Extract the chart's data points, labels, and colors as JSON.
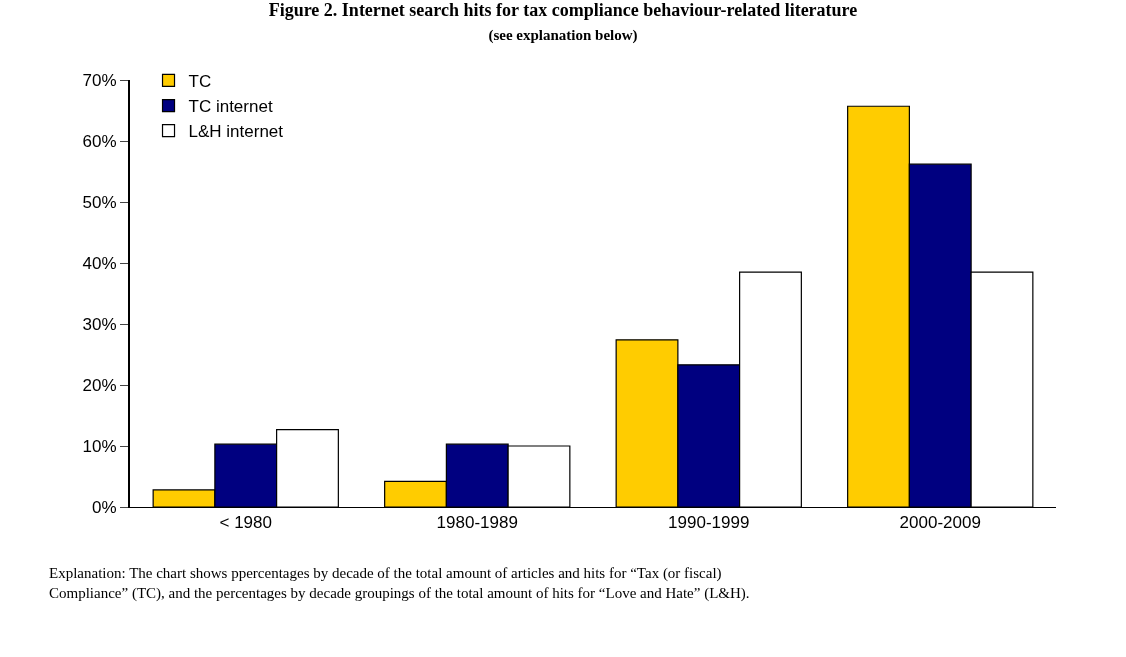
{
  "chart_data": {
    "type": "bar",
    "title": "Figure 2. Internet search hits for tax compliance behaviour-related literature",
    "subtitle": "(see explanation below)",
    "categories": [
      "< 1980",
      "1980-1989",
      "1990-1999",
      "2000-2009"
    ],
    "series": [
      {
        "name": "TC",
        "color": "#ffcc00",
        "values": [
          2.8,
          4.2,
          27.4,
          65.7
        ]
      },
      {
        "name": "TC internet",
        "color": "#000080",
        "values": [
          10.3,
          10.3,
          23.3,
          56.2
        ]
      },
      {
        "name": "L&H internet",
        "color": "#ffffff",
        "values": [
          12.7,
          10.0,
          38.5,
          38.5
        ]
      }
    ],
    "ylim": [
      0,
      70
    ],
    "yticks": [
      {
        "value": 0,
        "label": "0%"
      },
      {
        "value": 10,
        "label": "10%"
      },
      {
        "value": 20,
        "label": "20%"
      },
      {
        "value": 30,
        "label": "30%"
      },
      {
        "value": 40,
        "label": "40%"
      },
      {
        "value": 50,
        "label": "50%"
      },
      {
        "value": 60,
        "label": "60%"
      },
      {
        "value": 70,
        "label": "70%"
      }
    ],
    "legend": "top left",
    "annotations": [
      "Explanation: The chart shows ppercentages by decade of the total amount of articles and hits for “Tax (or fiscal) Compliance” (TC), and the percentages by decade groupings of the total amount of hits for “Love and Hate” (L&H)."
    ]
  }
}
